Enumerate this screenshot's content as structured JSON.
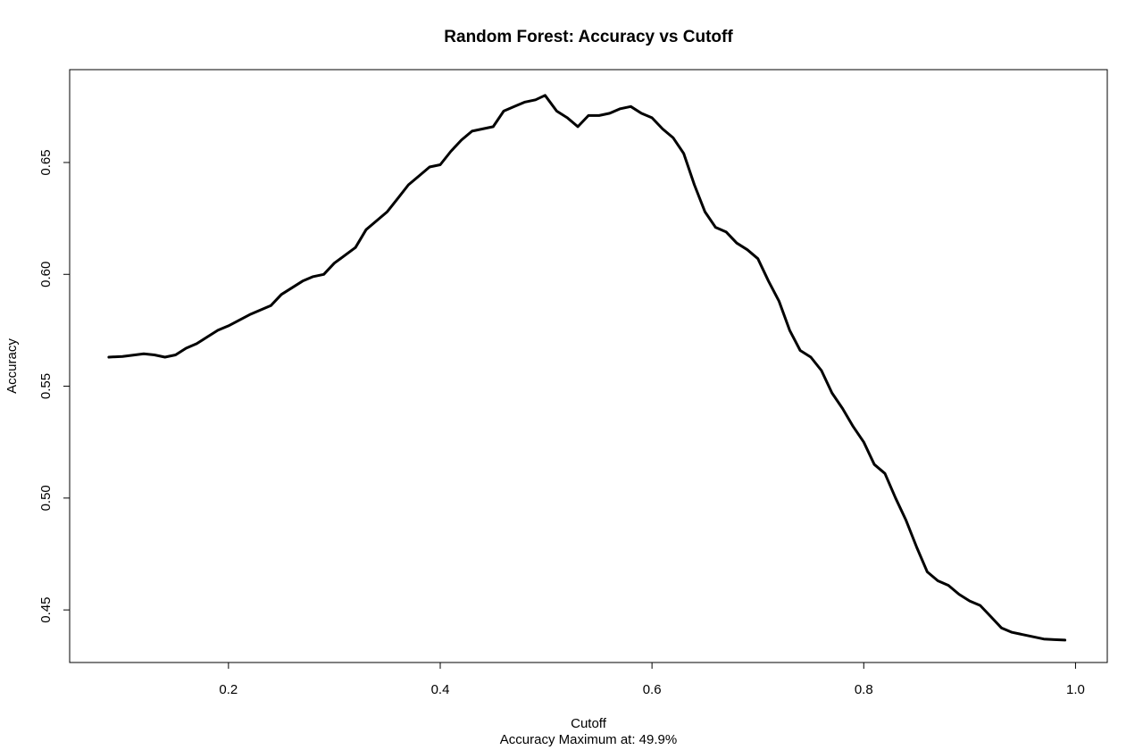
{
  "chart_data": {
    "type": "line",
    "title": "Random Forest: Accuracy vs Cutoff",
    "xlabel": "Cutoff",
    "subtitle": "Accuracy Maximum at: 49.9%",
    "ylabel": "Accuracy",
    "xlim": [
      0.05,
      1.03
    ],
    "ylim": [
      0.4265,
      0.6915
    ],
    "x_ticks": [
      0.2,
      0.4,
      0.6,
      0.8,
      1.0
    ],
    "x_tick_labels": [
      "0.2",
      "0.4",
      "0.6",
      "0.8",
      "1.0"
    ],
    "y_ticks": [
      0.45,
      0.5,
      0.55,
      0.6,
      0.65
    ],
    "y_tick_labels": [
      "0.45",
      "0.50",
      "0.55",
      "0.60",
      "0.65"
    ],
    "grid": false,
    "line_color": "#000000",
    "series": [
      {
        "x": [
          0.087,
          0.1,
          0.12,
          0.13,
          0.14,
          0.15,
          0.16,
          0.17,
          0.18,
          0.19,
          0.2,
          0.22,
          0.24,
          0.25,
          0.26,
          0.27,
          0.28,
          0.29,
          0.3,
          0.32,
          0.33,
          0.34,
          0.35,
          0.36,
          0.37,
          0.38,
          0.39,
          0.4,
          0.41,
          0.42,
          0.43,
          0.44,
          0.45,
          0.46,
          0.47,
          0.48,
          0.49,
          0.499,
          0.51,
          0.52,
          0.53,
          0.54,
          0.55,
          0.56,
          0.57,
          0.58,
          0.59,
          0.6,
          0.61,
          0.62,
          0.63,
          0.64,
          0.65,
          0.66,
          0.67,
          0.68,
          0.69,
          0.7,
          0.71,
          0.72,
          0.73,
          0.74,
          0.75,
          0.76,
          0.77,
          0.78,
          0.79,
          0.8,
          0.81,
          0.82,
          0.83,
          0.84,
          0.85,
          0.86,
          0.87,
          0.88,
          0.89,
          0.9,
          0.91,
          0.92,
          0.93,
          0.94,
          0.95,
          0.96,
          0.97,
          0.98,
          0.99
        ],
        "y": [
          0.563,
          0.5633,
          0.5645,
          0.564,
          0.563,
          0.564,
          0.567,
          0.569,
          0.572,
          0.575,
          0.577,
          0.582,
          0.586,
          0.591,
          0.594,
          0.597,
          0.599,
          0.6,
          0.605,
          0.612,
          0.62,
          0.624,
          0.628,
          0.634,
          0.64,
          0.644,
          0.648,
          0.649,
          0.655,
          0.66,
          0.664,
          0.665,
          0.666,
          0.673,
          0.675,
          0.677,
          0.678,
          0.68,
          0.673,
          0.67,
          0.666,
          0.671,
          0.671,
          0.672,
          0.674,
          0.675,
          0.672,
          0.67,
          0.665,
          0.661,
          0.654,
          0.64,
          0.628,
          0.621,
          0.619,
          0.614,
          0.611,
          0.607,
          0.597,
          0.588,
          0.575,
          0.566,
          0.563,
          0.557,
          0.547,
          0.54,
          0.532,
          0.525,
          0.515,
          0.511,
          0.5,
          0.49,
          0.478,
          0.467,
          0.463,
          0.461,
          0.457,
          0.454,
          0.452,
          0.447,
          0.442,
          0.44,
          0.439,
          0.438,
          0.437,
          0.4367,
          0.4365
        ]
      }
    ]
  }
}
